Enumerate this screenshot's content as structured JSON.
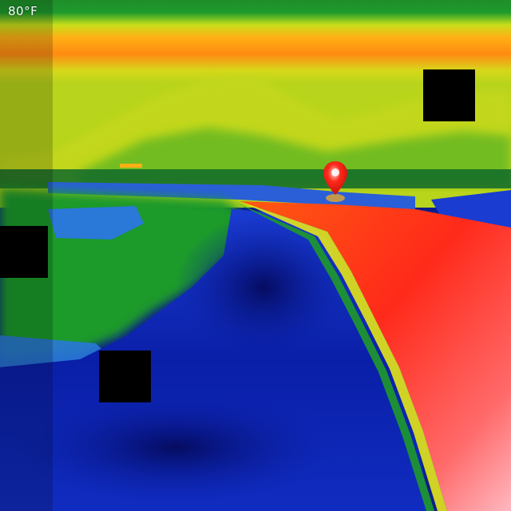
{
  "viewer": {
    "temperature_scale_label": "80°F"
  },
  "palette": {
    "hot": "#ff2a1a",
    "warm": "#ff9a10",
    "mid": "#e6e61a",
    "cool": "#2fa82a",
    "cold": "#1a3cd0",
    "coldest": "#06127a"
  },
  "overlays": {
    "redaction_boxes": 3
  }
}
